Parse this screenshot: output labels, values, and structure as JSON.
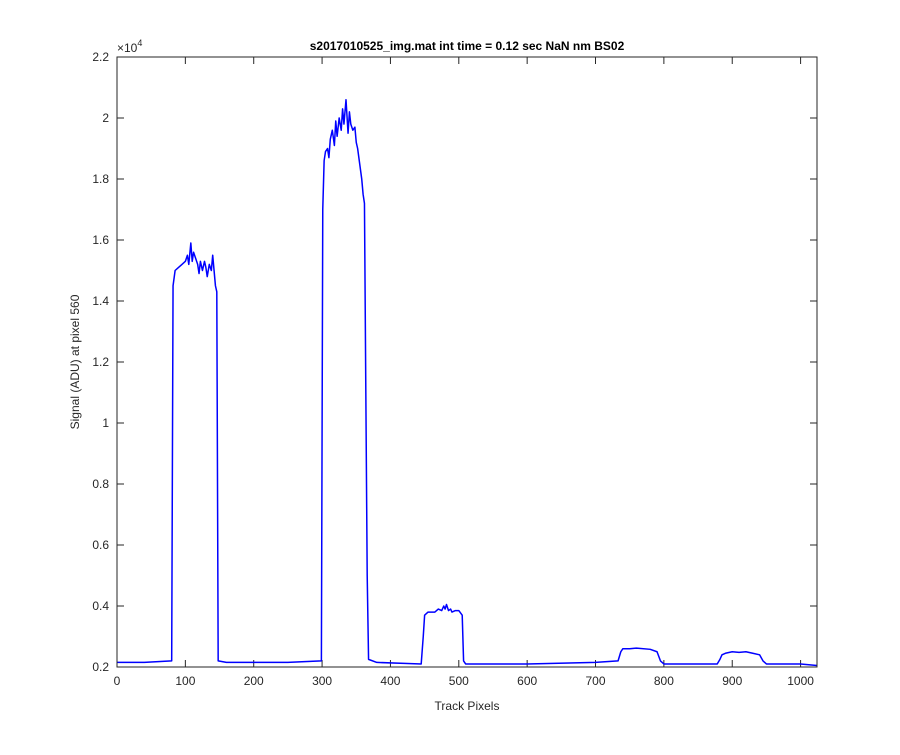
{
  "chart_data": {
    "type": "line",
    "title": "s2017010525_img.mat int time = 0.12 sec  NaN nm BS02",
    "xlabel": "Track Pixels",
    "ylabel": "Signal (ADU) at pixel 560",
    "exponent_label": "×10",
    "exponent_power": "4",
    "xlim": [
      0,
      1024
    ],
    "ylim": [
      0.2,
      2.2
    ],
    "xticks": [
      0,
      100,
      200,
      300,
      400,
      500,
      600,
      700,
      800,
      900,
      1000
    ],
    "xtick_labels": [
      "0",
      "100",
      "200",
      "300",
      "400",
      "500",
      "600",
      "700",
      "800",
      "900",
      "1000"
    ],
    "yticks": [
      0.2,
      0.4,
      0.6,
      0.8,
      1.0,
      1.2,
      1.4,
      1.6,
      1.8,
      2.0,
      2.2
    ],
    "ytick_labels": [
      "0.2",
      "0.4",
      "0.6",
      "0.8",
      "1",
      "1.2",
      "1.4",
      "1.6",
      "1.8",
      "2",
      "2.2"
    ],
    "grid": false,
    "series": [
      {
        "color": "#0000ff",
        "x": [
          0,
          40,
          80,
          82,
          85,
          90,
          95,
          100,
          103,
          105,
          108,
          110,
          112,
          115,
          118,
          120,
          122,
          125,
          128,
          130,
          132,
          135,
          138,
          140,
          142,
          144,
          146,
          148,
          160,
          200,
          250,
          299,
          301,
          303,
          305,
          308,
          310,
          312,
          315,
          318,
          320,
          322,
          325,
          328,
          330,
          332,
          335,
          338,
          340,
          342,
          345,
          348,
          350,
          352,
          355,
          358,
          360,
          362,
          364,
          366,
          368,
          380,
          420,
          445,
          448,
          450,
          455,
          460,
          465,
          470,
          475,
          478,
          480,
          482,
          485,
          488,
          490,
          495,
          500,
          505,
          507,
          510,
          520,
          600,
          700,
          733,
          737,
          740,
          750,
          760,
          780,
          790,
          795,
          800,
          820,
          850,
          878,
          882,
          885,
          890,
          900,
          910,
          920,
          930,
          940,
          945,
          950,
          1000,
          1024
        ],
        "y": [
          0.215,
          0.215,
          0.22,
          1.45,
          1.5,
          1.51,
          1.52,
          1.53,
          1.55,
          1.52,
          1.59,
          1.53,
          1.56,
          1.54,
          1.52,
          1.49,
          1.53,
          1.5,
          1.53,
          1.51,
          1.48,
          1.52,
          1.5,
          1.55,
          1.5,
          1.45,
          1.43,
          0.22,
          0.215,
          0.215,
          0.215,
          0.22,
          1.7,
          1.86,
          1.89,
          1.9,
          1.87,
          1.93,
          1.96,
          1.91,
          1.99,
          1.94,
          2.0,
          1.96,
          2.03,
          1.98,
          2.06,
          1.95,
          2.02,
          1.98,
          1.96,
          1.97,
          1.92,
          1.9,
          1.85,
          1.8,
          1.75,
          1.72,
          1.1,
          0.5,
          0.225,
          0.215,
          0.212,
          0.21,
          0.3,
          0.37,
          0.38,
          0.38,
          0.38,
          0.39,
          0.385,
          0.4,
          0.39,
          0.405,
          0.385,
          0.39,
          0.38,
          0.385,
          0.385,
          0.37,
          0.22,
          0.21,
          0.21,
          0.21,
          0.215,
          0.22,
          0.25,
          0.26,
          0.26,
          0.262,
          0.258,
          0.25,
          0.22,
          0.21,
          0.21,
          0.21,
          0.21,
          0.225,
          0.24,
          0.245,
          0.25,
          0.248,
          0.25,
          0.245,
          0.24,
          0.22,
          0.21,
          0.21,
          0.205
        ]
      }
    ]
  }
}
